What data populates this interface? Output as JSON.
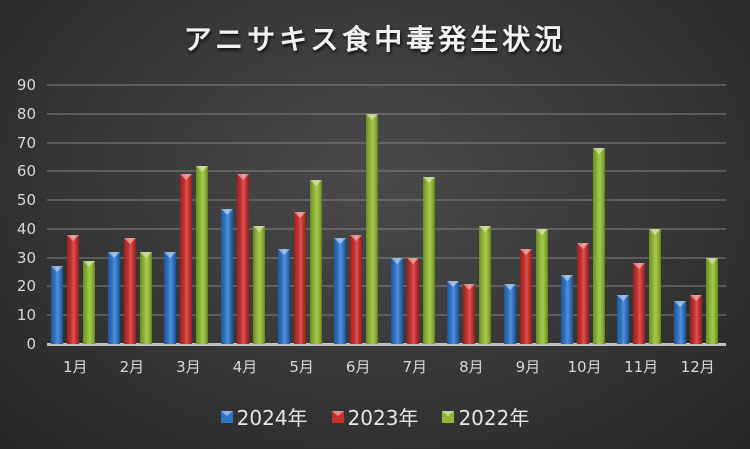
{
  "chart_data": {
    "type": "bar",
    "title": "アニサキス食中毒発生状況",
    "xlabel": "",
    "ylabel": "",
    "ylim": [
      0,
      90
    ],
    "yticks": [
      0,
      10,
      20,
      30,
      40,
      50,
      60,
      70,
      80,
      90
    ],
    "grid": true,
    "legend_position": "bottom",
    "categories": [
      "1月",
      "2月",
      "3月",
      "4月",
      "5月",
      "6月",
      "7月",
      "8月",
      "9月",
      "10月",
      "11月",
      "12月"
    ],
    "series": [
      {
        "name": "2024年",
        "color": "#2e75c8",
        "values": [
          27,
          32,
          32,
          47,
          33,
          37,
          30,
          22,
          21,
          24,
          17,
          15
        ]
      },
      {
        "name": "2023年",
        "color": "#c8302e",
        "values": [
          38,
          37,
          59,
          59,
          46,
          38,
          30,
          21,
          33,
          35,
          28,
          17
        ]
      },
      {
        "name": "2022年",
        "color": "#8fb832",
        "values": [
          29,
          32,
          62,
          41,
          57,
          80,
          58,
          41,
          40,
          68,
          40,
          30
        ]
      }
    ]
  }
}
